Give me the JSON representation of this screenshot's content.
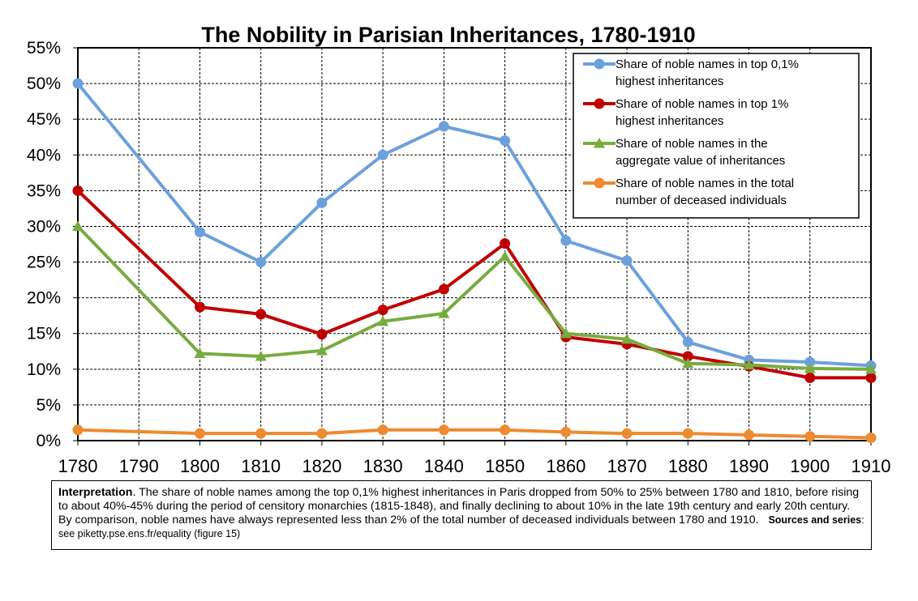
{
  "chart_data": {
    "type": "line",
    "title": "The Nobility in Parisian Inheritances, 1780-1910",
    "x": [
      1780,
      1800,
      1810,
      1820,
      1830,
      1840,
      1850,
      1860,
      1870,
      1880,
      1890,
      1900,
      1910
    ],
    "x_ticks": [
      "1780",
      "1790",
      "1800",
      "1810",
      "1820",
      "1830",
      "1840",
      "1850",
      "1860",
      "1870",
      "1880",
      "1890",
      "1900",
      "1910"
    ],
    "xlim": [
      1780,
      1910
    ],
    "ylim": [
      0,
      55
    ],
    "y_ticks": [
      "0%",
      "5%",
      "10%",
      "15%",
      "20%",
      "25%",
      "30%",
      "35%",
      "40%",
      "45%",
      "50%",
      "55%"
    ],
    "grid": true,
    "legend_position": "top-right",
    "series": [
      {
        "name": "Share of noble names in top 0,1% highest inheritances",
        "legend_lines": [
          "Share of noble names in top 0,1%",
          "highest inheritances"
        ],
        "color": "#6ca0dc",
        "marker": "circle",
        "values": [
          50,
          29.2,
          25,
          33.3,
          40,
          44,
          42,
          28,
          25.2,
          13.8,
          11.3,
          11,
          10.5
        ]
      },
      {
        "name": "Share of noble names in top 1% highest inheritances",
        "legend_lines": [
          "Share of noble names in top 1%",
          "highest inheritances"
        ],
        "color": "#c00000",
        "marker": "circle",
        "values": [
          35,
          18.7,
          17.7,
          14.9,
          18.3,
          21.2,
          27.6,
          14.5,
          13.5,
          11.8,
          10.4,
          8.8,
          8.8
        ]
      },
      {
        "name": "Share of noble names in the aggregate value of inheritances",
        "legend_lines": [
          "Share of noble names in the",
          "aggregate value of inheritances"
        ],
        "color": "#77ac3f",
        "marker": "triangle",
        "values": [
          30,
          12.2,
          11.8,
          12.6,
          16.7,
          17.8,
          25.8,
          15,
          14.2,
          10.8,
          10.6,
          10.1,
          10
        ]
      },
      {
        "name": "Share of noble names in the total number of deceased individuals",
        "legend_lines": [
          "Share of noble names in the total",
          "number of deceased individuals"
        ],
        "color": "#ee8a30",
        "marker": "circle",
        "values": [
          1.5,
          1,
          1,
          1,
          1.5,
          1.5,
          1.5,
          1.2,
          1,
          1,
          0.8,
          0.6,
          0.4
        ]
      }
    ]
  },
  "note": {
    "lead": "Interpretation",
    "body": ". The share of noble names among the top 0,1% highest inheritances in Paris dropped from 50% to 25% between 1780 and 1810, before rising to about 40%-45% during the period of censitory monarchies (1815-1848), and finally declining to about 10% in the late 19th century and early 20th century. By comparison, noble names have always represented less than 2% of the total number of deceased individuals between 1780 and 1910.",
    "sources_label": "Sources and series",
    "sources_text": ": see piketty.pse.ens.fr/equality (figure 15)"
  }
}
